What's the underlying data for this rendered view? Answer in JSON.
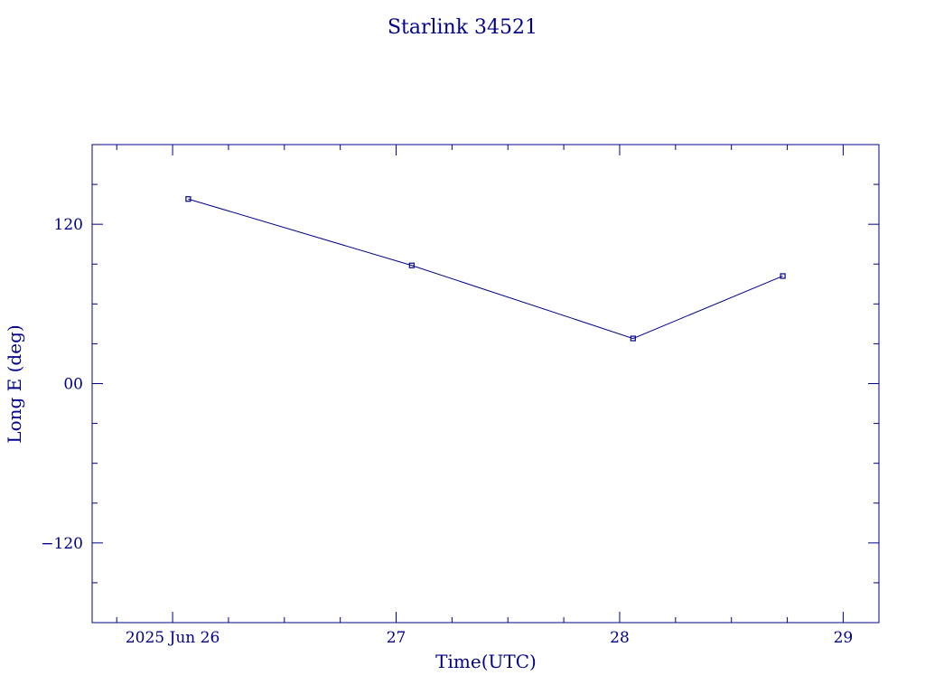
{
  "chart_data": {
    "type": "line",
    "title": "Starlink 34521",
    "xlabel": "Time(UTC)",
    "ylabel": "Long E (deg)",
    "x_ticks": [
      {
        "value": 26,
        "label": "2025 Jun 26"
      },
      {
        "value": 27,
        "label": "27"
      },
      {
        "value": 28,
        "label": "28"
      },
      {
        "value": 29,
        "label": "29"
      }
    ],
    "y_ticks": [
      {
        "value": 120,
        "label": "120"
      },
      {
        "value": 0,
        "label": "00"
      },
      {
        "value": -120,
        "label": "−120"
      }
    ],
    "xlim": [
      25.64,
      29.16
    ],
    "ylim": [
      -180,
      180
    ],
    "x_minor_step": 0.25,
    "y_minor_step": 30,
    "series": [
      {
        "x": [
          26.07,
          27.07,
          28.06,
          28.73
        ],
        "y": [
          139,
          89,
          34,
          81
        ],
        "marker": "square"
      }
    ],
    "grid": false,
    "color": "#00008b"
  }
}
